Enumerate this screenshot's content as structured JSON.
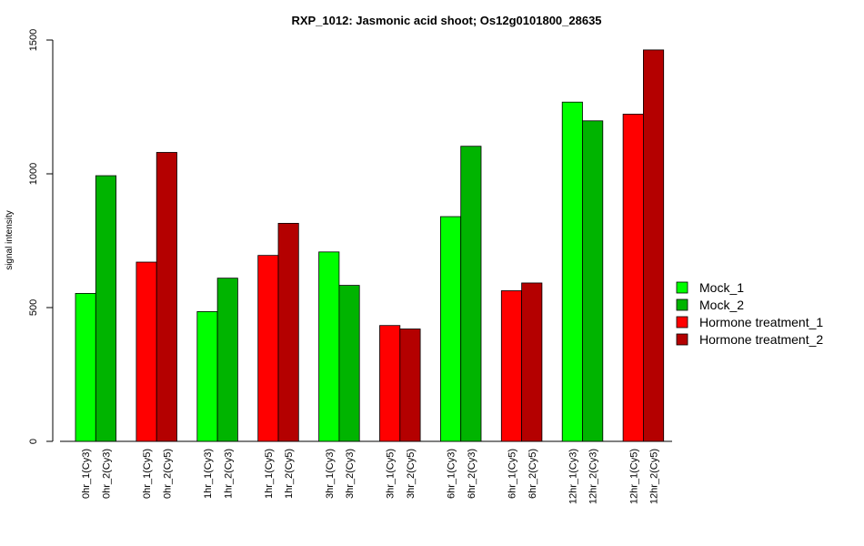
{
  "chart_data": {
    "type": "bar",
    "title": "RXP_1012: Jasmonic acid shoot; Os12g0101800_28635",
    "xlabel": "",
    "ylabel": "signal intensity",
    "ylim": [
      0,
      1500
    ],
    "yticks": [
      0,
      500,
      1000,
      1500
    ],
    "grid": false,
    "legend_position": "right",
    "legend": [
      {
        "name": "Mock_1",
        "color": "#00FF00"
      },
      {
        "name": "Mock_2",
        "color": "#00B400"
      },
      {
        "name": "Hormone treatment_1",
        "color": "#FF0000"
      },
      {
        "name": "Hormone treatment_2",
        "color": "#B40000"
      }
    ],
    "bars": [
      {
        "label": "0hr_1(Cy3)",
        "value": 553,
        "color": "#00FF00"
      },
      {
        "label": "0hr_2(Cy3)",
        "value": 993,
        "color": "#00B400"
      },
      {
        "label": "0hr_1(Cy5)",
        "value": 670,
        "color": "#FF0000"
      },
      {
        "label": "0hr_2(Cy5)",
        "value": 1080,
        "color": "#B40000"
      },
      {
        "label": "1hr_1(Cy3)",
        "value": 485,
        "color": "#00FF00"
      },
      {
        "label": "1hr_2(Cy3)",
        "value": 610,
        "color": "#00B400"
      },
      {
        "label": "1hr_1(Cy5)",
        "value": 695,
        "color": "#FF0000"
      },
      {
        "label": "1hr_2(Cy5)",
        "value": 815,
        "color": "#B40000"
      },
      {
        "label": "3hr_1(Cy3)",
        "value": 708,
        "color": "#00FF00"
      },
      {
        "label": "3hr_2(Cy3)",
        "value": 583,
        "color": "#00B400"
      },
      {
        "label": "3hr_1(Cy5)",
        "value": 433,
        "color": "#FF0000"
      },
      {
        "label": "3hr_2(Cy5)",
        "value": 420,
        "color": "#B40000"
      },
      {
        "label": "6hr_1(Cy3)",
        "value": 840,
        "color": "#00FF00"
      },
      {
        "label": "6hr_2(Cy3)",
        "value": 1103,
        "color": "#00B400"
      },
      {
        "label": "6hr_1(Cy5)",
        "value": 563,
        "color": "#FF0000"
      },
      {
        "label": "6hr_2(Cy5)",
        "value": 592,
        "color": "#B40000"
      },
      {
        "label": "12hr_1(Cy3)",
        "value": 1268,
        "color": "#00FF00"
      },
      {
        "label": "12hr_2(Cy3)",
        "value": 1198,
        "color": "#00B400"
      },
      {
        "label": "12hr_1(Cy5)",
        "value": 1223,
        "color": "#FF0000"
      },
      {
        "label": "12hr_2(Cy5)",
        "value": 1463,
        "color": "#B40000"
      }
    ]
  }
}
